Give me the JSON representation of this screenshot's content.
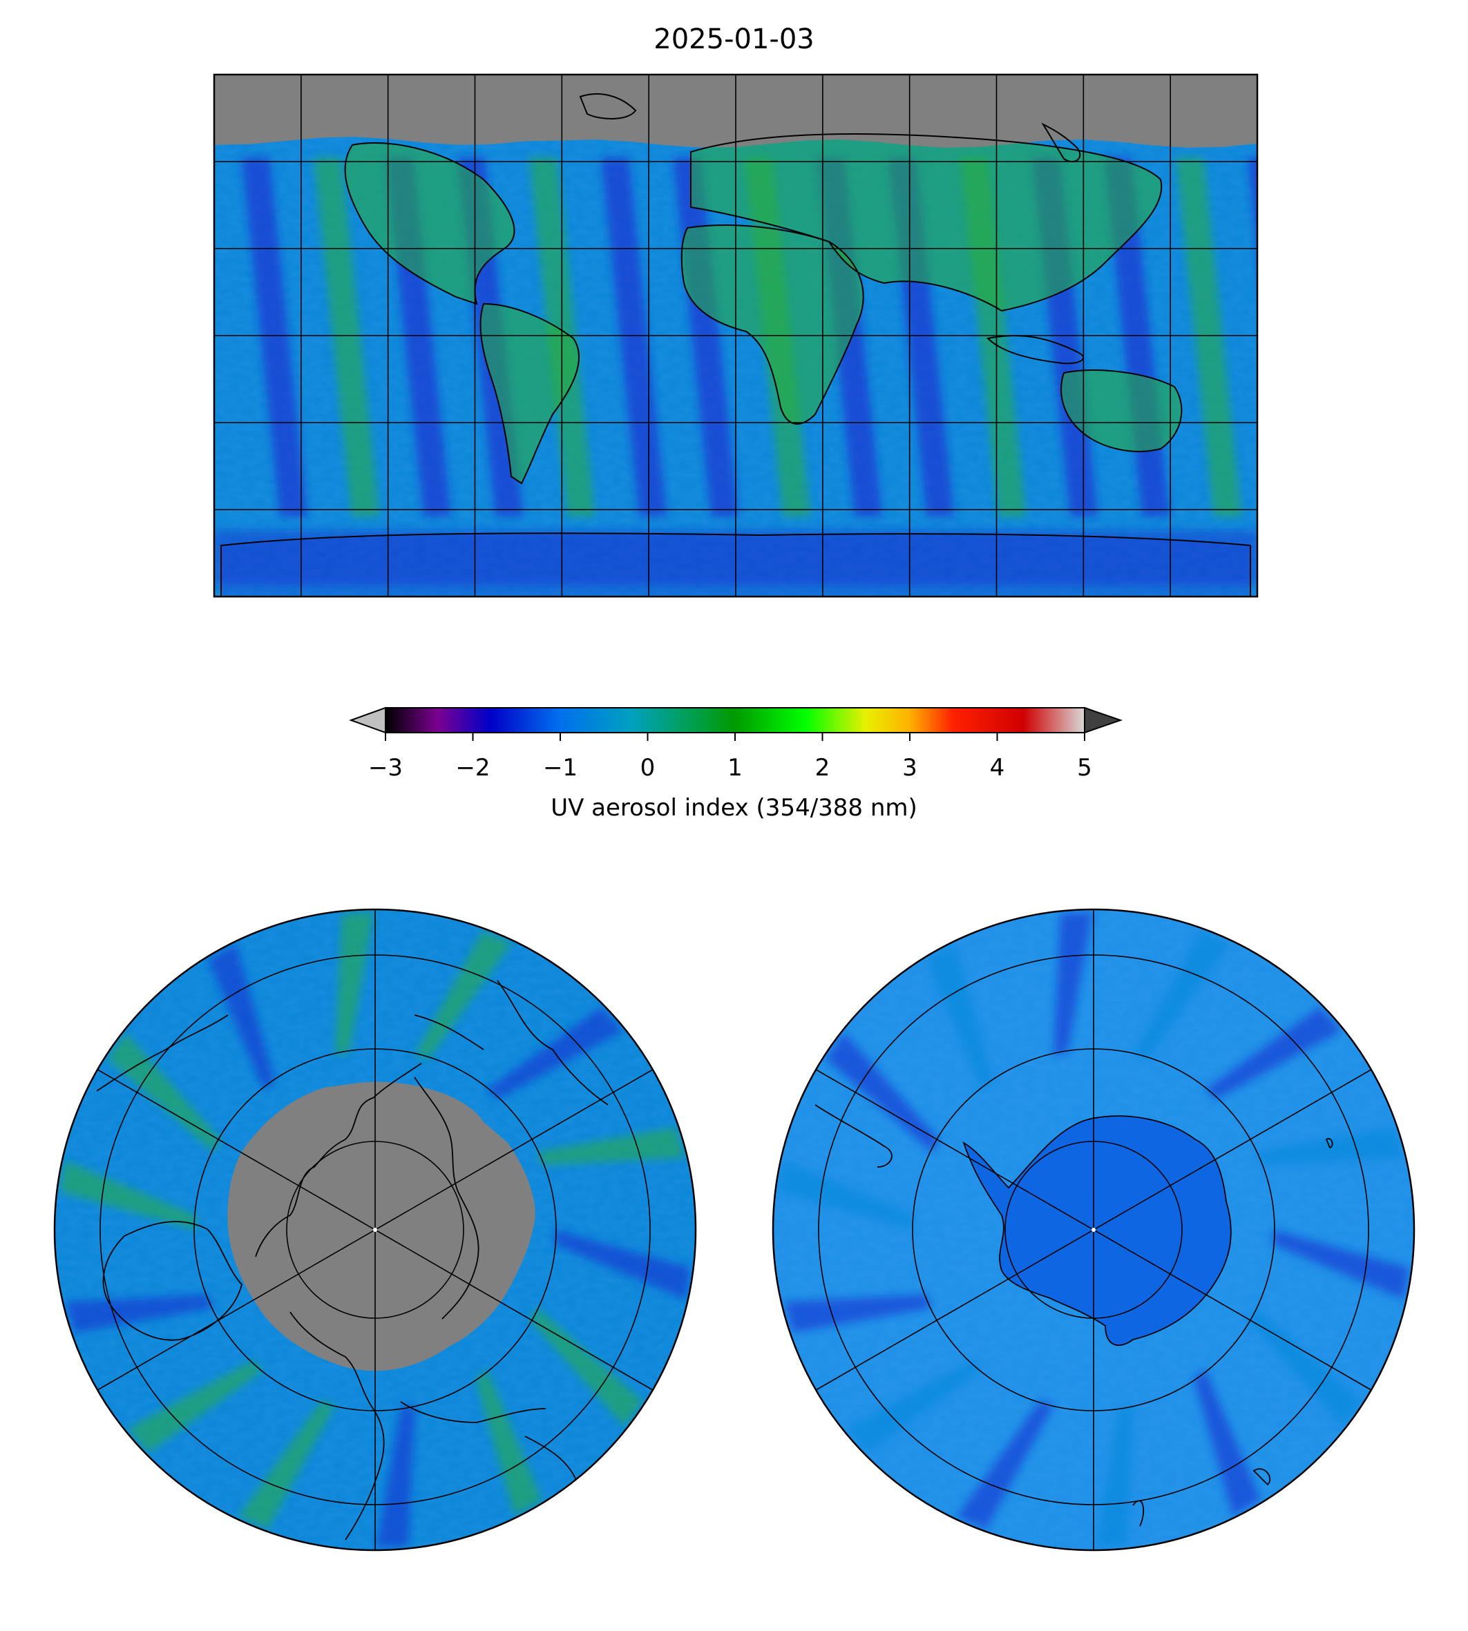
{
  "figure": {
    "title": "2025-01-03"
  },
  "colorbar": {
    "label": "UV aerosol index (354/388 nm)",
    "ticks": [
      "−3",
      "−2",
      "−1",
      "0",
      "1",
      "2",
      "3",
      "4",
      "5"
    ],
    "range": [
      -3,
      5
    ],
    "extend": "both",
    "stops": [
      {
        "value": -3.0,
        "color": "#000000"
      },
      {
        "value": -2.4,
        "color": "#7a0090"
      },
      {
        "value": -1.8,
        "color": "#0000c8"
      },
      {
        "value": -1.0,
        "color": "#0070ee"
      },
      {
        "value": -0.2,
        "color": "#00a0c0"
      },
      {
        "value": 0.4,
        "color": "#00a060"
      },
      {
        "value": 1.0,
        "color": "#009a00"
      },
      {
        "value": 1.8,
        "color": "#00ff00"
      },
      {
        "value": 2.5,
        "color": "#e8f000"
      },
      {
        "value": 3.0,
        "color": "#ffb000"
      },
      {
        "value": 3.5,
        "color": "#ff2000"
      },
      {
        "value": 4.3,
        "color": "#d00000"
      },
      {
        "value": 5.0,
        "color": "#d8d8d8"
      }
    ],
    "under_color": "#c0c0c0",
    "over_color": "#404040"
  },
  "maps": {
    "global": {
      "projection": "plate-carree",
      "no_data_color": "#808080"
    },
    "north_polar": {
      "projection": "north-polar-stereographic",
      "no_data_color": "#808080"
    },
    "south_polar": {
      "projection": "south-polar-stereographic"
    }
  },
  "colors": {
    "ocean_base": "#0a86d8",
    "land_green": "#2aae3a",
    "low_blue": "#1a2ad0",
    "coast_line": "#000000"
  }
}
